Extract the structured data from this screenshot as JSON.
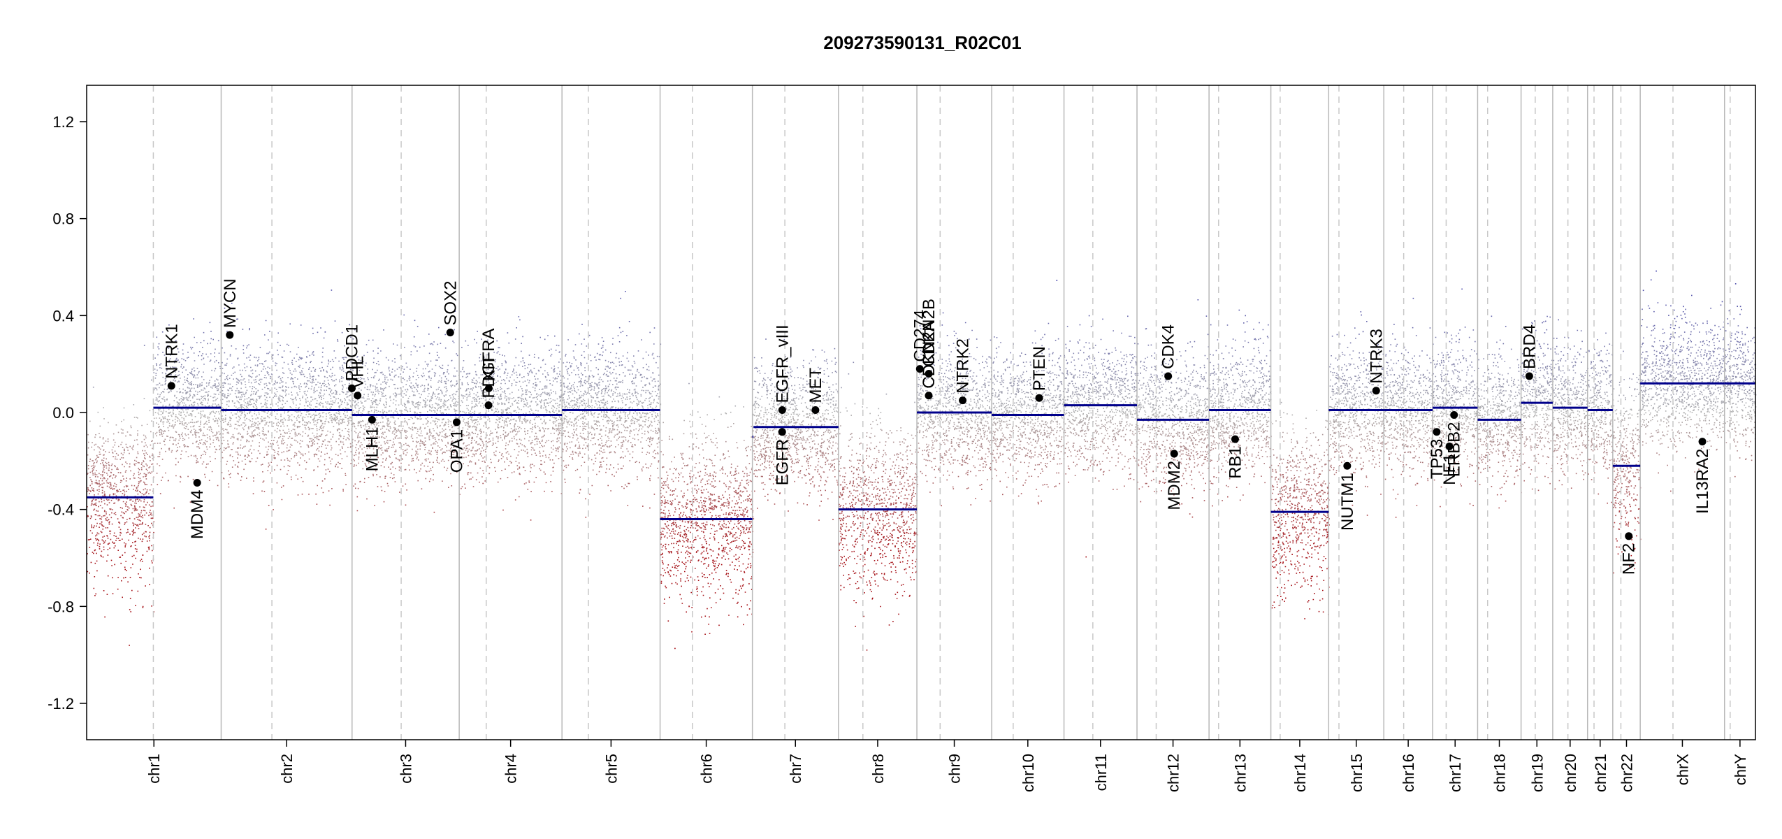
{
  "chart_data": {
    "type": "scatter",
    "title": "209273590131_R02C01",
    "xlabel": "",
    "ylabel": "",
    "ylim": [
      -1.35,
      1.35
    ],
    "y_ticks": [
      -1.2,
      -0.8,
      -0.4,
      0.0,
      0.4,
      0.8,
      1.2
    ],
    "y_tick_labels": [
      "-1.2",
      "-0.8",
      "-0.4",
      "0.0",
      "0.4",
      "0.8",
      "1.2"
    ],
    "grid": false,
    "colors": {
      "segment": "#00008b",
      "gain": "#3a3aa8",
      "loss": "#a50f15",
      "neutral": "#b0b0b0",
      "chrom_border": "#b8b8b8",
      "centromere": "#c8c8c8",
      "gene_point": "#000000"
    },
    "chromosomes": [
      {
        "name": "chr1",
        "length": 248.9,
        "centromere": 123.4
      },
      {
        "name": "chr2",
        "length": 242.2,
        "centromere": 93.9
      },
      {
        "name": "chr3",
        "length": 198.3,
        "centromere": 90.9
      },
      {
        "name": "chr4",
        "length": 190.2,
        "centromere": 50.0
      },
      {
        "name": "chr5",
        "length": 181.5,
        "centromere": 48.8
      },
      {
        "name": "chr6",
        "length": 170.8,
        "centromere": 59.8
      },
      {
        "name": "chr7",
        "length": 159.3,
        "centromere": 60.1
      },
      {
        "name": "chr8",
        "length": 145.1,
        "centromere": 45.2
      },
      {
        "name": "chr9",
        "length": 138.4,
        "centromere": 43.0
      },
      {
        "name": "chr10",
        "length": 133.8,
        "centromere": 39.8
      },
      {
        "name": "chr11",
        "length": 135.1,
        "centromere": 53.4
      },
      {
        "name": "chr12",
        "length": 133.3,
        "centromere": 35.5
      },
      {
        "name": "chr13",
        "length": 114.4,
        "centromere": 17.7
      },
      {
        "name": "chr14",
        "length": 107.0,
        "centromere": 17.2
      },
      {
        "name": "chr15",
        "length": 102.0,
        "centromere": 19.0
      },
      {
        "name": "chr16",
        "length": 90.3,
        "centromere": 36.8
      },
      {
        "name": "chr17",
        "length": 83.3,
        "centromere": 25.1
      },
      {
        "name": "chr18",
        "length": 80.4,
        "centromere": 18.5
      },
      {
        "name": "chr19",
        "length": 58.6,
        "centromere": 26.2
      },
      {
        "name": "chr20",
        "length": 64.4,
        "centromere": 28.1
      },
      {
        "name": "chr21",
        "length": 46.7,
        "centromere": 12.0
      },
      {
        "name": "chr22",
        "length": 50.8,
        "centromere": 15.0
      },
      {
        "name": "chrX",
        "length": 156.0,
        "centromere": 60.6
      },
      {
        "name": "chrY",
        "length": 57.2,
        "centromere": 10.4
      }
    ],
    "segments": [
      {
        "chr": "chr1",
        "start": 0,
        "end": 123.4,
        "value": -0.35
      },
      {
        "chr": "chr1",
        "start": 123.4,
        "end": 248.9,
        "value": 0.02
      },
      {
        "chr": "chr2",
        "start": 0,
        "end": 242.2,
        "value": 0.01
      },
      {
        "chr": "chr3",
        "start": 0,
        "end": 198.3,
        "value": -0.01
      },
      {
        "chr": "chr4",
        "start": 0,
        "end": 190.2,
        "value": -0.01
      },
      {
        "chr": "chr5",
        "start": 0,
        "end": 181.5,
        "value": 0.01
      },
      {
        "chr": "chr6",
        "start": 0,
        "end": 170.8,
        "value": -0.44
      },
      {
        "chr": "chr7",
        "start": 0,
        "end": 2.0,
        "value": -0.1
      },
      {
        "chr": "chr7",
        "start": 2.0,
        "end": 159.3,
        "value": -0.06
      },
      {
        "chr": "chr8",
        "start": 0,
        "end": 145.1,
        "value": -0.4
      },
      {
        "chr": "chr9",
        "start": 0,
        "end": 138.4,
        "value": 0.0
      },
      {
        "chr": "chr10",
        "start": 0,
        "end": 133.8,
        "value": -0.01
      },
      {
        "chr": "chr11",
        "start": 0,
        "end": 135.1,
        "value": 0.03
      },
      {
        "chr": "chr12",
        "start": 0,
        "end": 133.3,
        "value": -0.03
      },
      {
        "chr": "chr13",
        "start": 0,
        "end": 114.4,
        "value": 0.01
      },
      {
        "chr": "chr14",
        "start": 0,
        "end": 107.0,
        "value": -0.41
      },
      {
        "chr": "chr15",
        "start": 0,
        "end": 102.0,
        "value": 0.01
      },
      {
        "chr": "chr16",
        "start": 0,
        "end": 90.3,
        "value": 0.01
      },
      {
        "chr": "chr17",
        "start": 0,
        "end": 83.3,
        "value": 0.02
      },
      {
        "chr": "chr18",
        "start": 0,
        "end": 80.4,
        "value": -0.03
      },
      {
        "chr": "chr19",
        "start": 0,
        "end": 58.6,
        "value": 0.04
      },
      {
        "chr": "chr20",
        "start": 0,
        "end": 64.4,
        "value": 0.02
      },
      {
        "chr": "chr21",
        "start": 0,
        "end": 46.7,
        "value": 0.01
      },
      {
        "chr": "chr22",
        "start": 0,
        "end": 50.8,
        "value": -0.22
      },
      {
        "chr": "chrX",
        "start": 0,
        "end": 156.0,
        "value": 0.12
      },
      {
        "chr": "chrY",
        "start": 0,
        "end": 57.2,
        "value": 0.12
      }
    ],
    "genes": [
      {
        "name": "NTRK1",
        "chr": "chr1",
        "pos": 156.8,
        "value": 0.11,
        "label_side": "above"
      },
      {
        "name": "MDM4",
        "chr": "chr1",
        "pos": 204.5,
        "value": -0.29,
        "label_side": "below"
      },
      {
        "name": "MYCN",
        "chr": "chr2",
        "pos": 15.9,
        "value": 0.32,
        "label_side": "above"
      },
      {
        "name": "PDCD1",
        "chr": "chr2",
        "pos": 241.9,
        "value": 0.1,
        "label_side": "above"
      },
      {
        "name": "VHL",
        "chr": "chr3",
        "pos": 10.2,
        "value": 0.07,
        "label_side": "above"
      },
      {
        "name": "MLH1",
        "chr": "chr3",
        "pos": 37.0,
        "value": -0.03,
        "label_side": "below"
      },
      {
        "name": "SOX2",
        "chr": "chr3",
        "pos": 181.7,
        "value": 0.33,
        "label_side": "above"
      },
      {
        "name": "OPA1",
        "chr": "chr3",
        "pos": 193.6,
        "value": -0.04,
        "label_side": "below"
      },
      {
        "name": "KIT",
        "chr": "chr4",
        "pos": 54.7,
        "value": 0.1,
        "label_side": "above"
      },
      {
        "name": "PDGFRA",
        "chr": "chr4",
        "pos": 54.2,
        "value": 0.03,
        "label_side": "above"
      },
      {
        "name": "EGFR",
        "chr": "chr7",
        "pos": 55.1,
        "value": -0.08,
        "label_side": "below"
      },
      {
        "name": "EGFR_vIII",
        "chr": "chr7",
        "pos": 55.2,
        "value": 0.01,
        "label_side": "above"
      },
      {
        "name": "MET",
        "chr": "chr7",
        "pos": 116.7,
        "value": 0.01,
        "label_side": "above"
      },
      {
        "name": "CD274",
        "chr": "chr9",
        "pos": 5.5,
        "value": 0.18,
        "label_side": "above"
      },
      {
        "name": "CDKN2A",
        "chr": "chr9",
        "pos": 21.9,
        "value": 0.07,
        "label_side": "above"
      },
      {
        "name": "CDKN2B",
        "chr": "chr9",
        "pos": 22.0,
        "value": 0.16,
        "label_side": "above"
      },
      {
        "name": "NTRK2",
        "chr": "chr9",
        "pos": 84.7,
        "value": 0.05,
        "label_side": "above"
      },
      {
        "name": "PTEN",
        "chr": "chr10",
        "pos": 87.9,
        "value": 0.06,
        "label_side": "above"
      },
      {
        "name": "CDK4",
        "chr": "chr12",
        "pos": 57.7,
        "value": 0.15,
        "label_side": "above"
      },
      {
        "name": "MDM2",
        "chr": "chr12",
        "pos": 68.8,
        "value": -0.17,
        "label_side": "below"
      },
      {
        "name": "RB1",
        "chr": "chr13",
        "pos": 48.3,
        "value": -0.11,
        "label_side": "below"
      },
      {
        "name": "NUTM1",
        "chr": "chr15",
        "pos": 34.3,
        "value": -0.22,
        "label_side": "below"
      },
      {
        "name": "NTRK3",
        "chr": "chr15",
        "pos": 87.9,
        "value": 0.09,
        "label_side": "above"
      },
      {
        "name": "TP53",
        "chr": "chr17",
        "pos": 7.6,
        "value": -0.08,
        "label_side": "below"
      },
      {
        "name": "NF1",
        "chr": "chr17",
        "pos": 31.1,
        "value": -0.14,
        "label_side": "below"
      },
      {
        "name": "ERBB2",
        "chr": "chr17",
        "pos": 39.7,
        "value": -0.01,
        "label_side": "below"
      },
      {
        "name": "BRD4",
        "chr": "chr19",
        "pos": 15.2,
        "value": 0.15,
        "label_side": "above"
      },
      {
        "name": "NF2",
        "chr": "chr22",
        "pos": 29.6,
        "value": -0.51,
        "label_side": "below"
      },
      {
        "name": "IL13RA2",
        "chr": "chrX",
        "pos": 115.0,
        "value": -0.12,
        "label_side": "below"
      }
    ]
  }
}
